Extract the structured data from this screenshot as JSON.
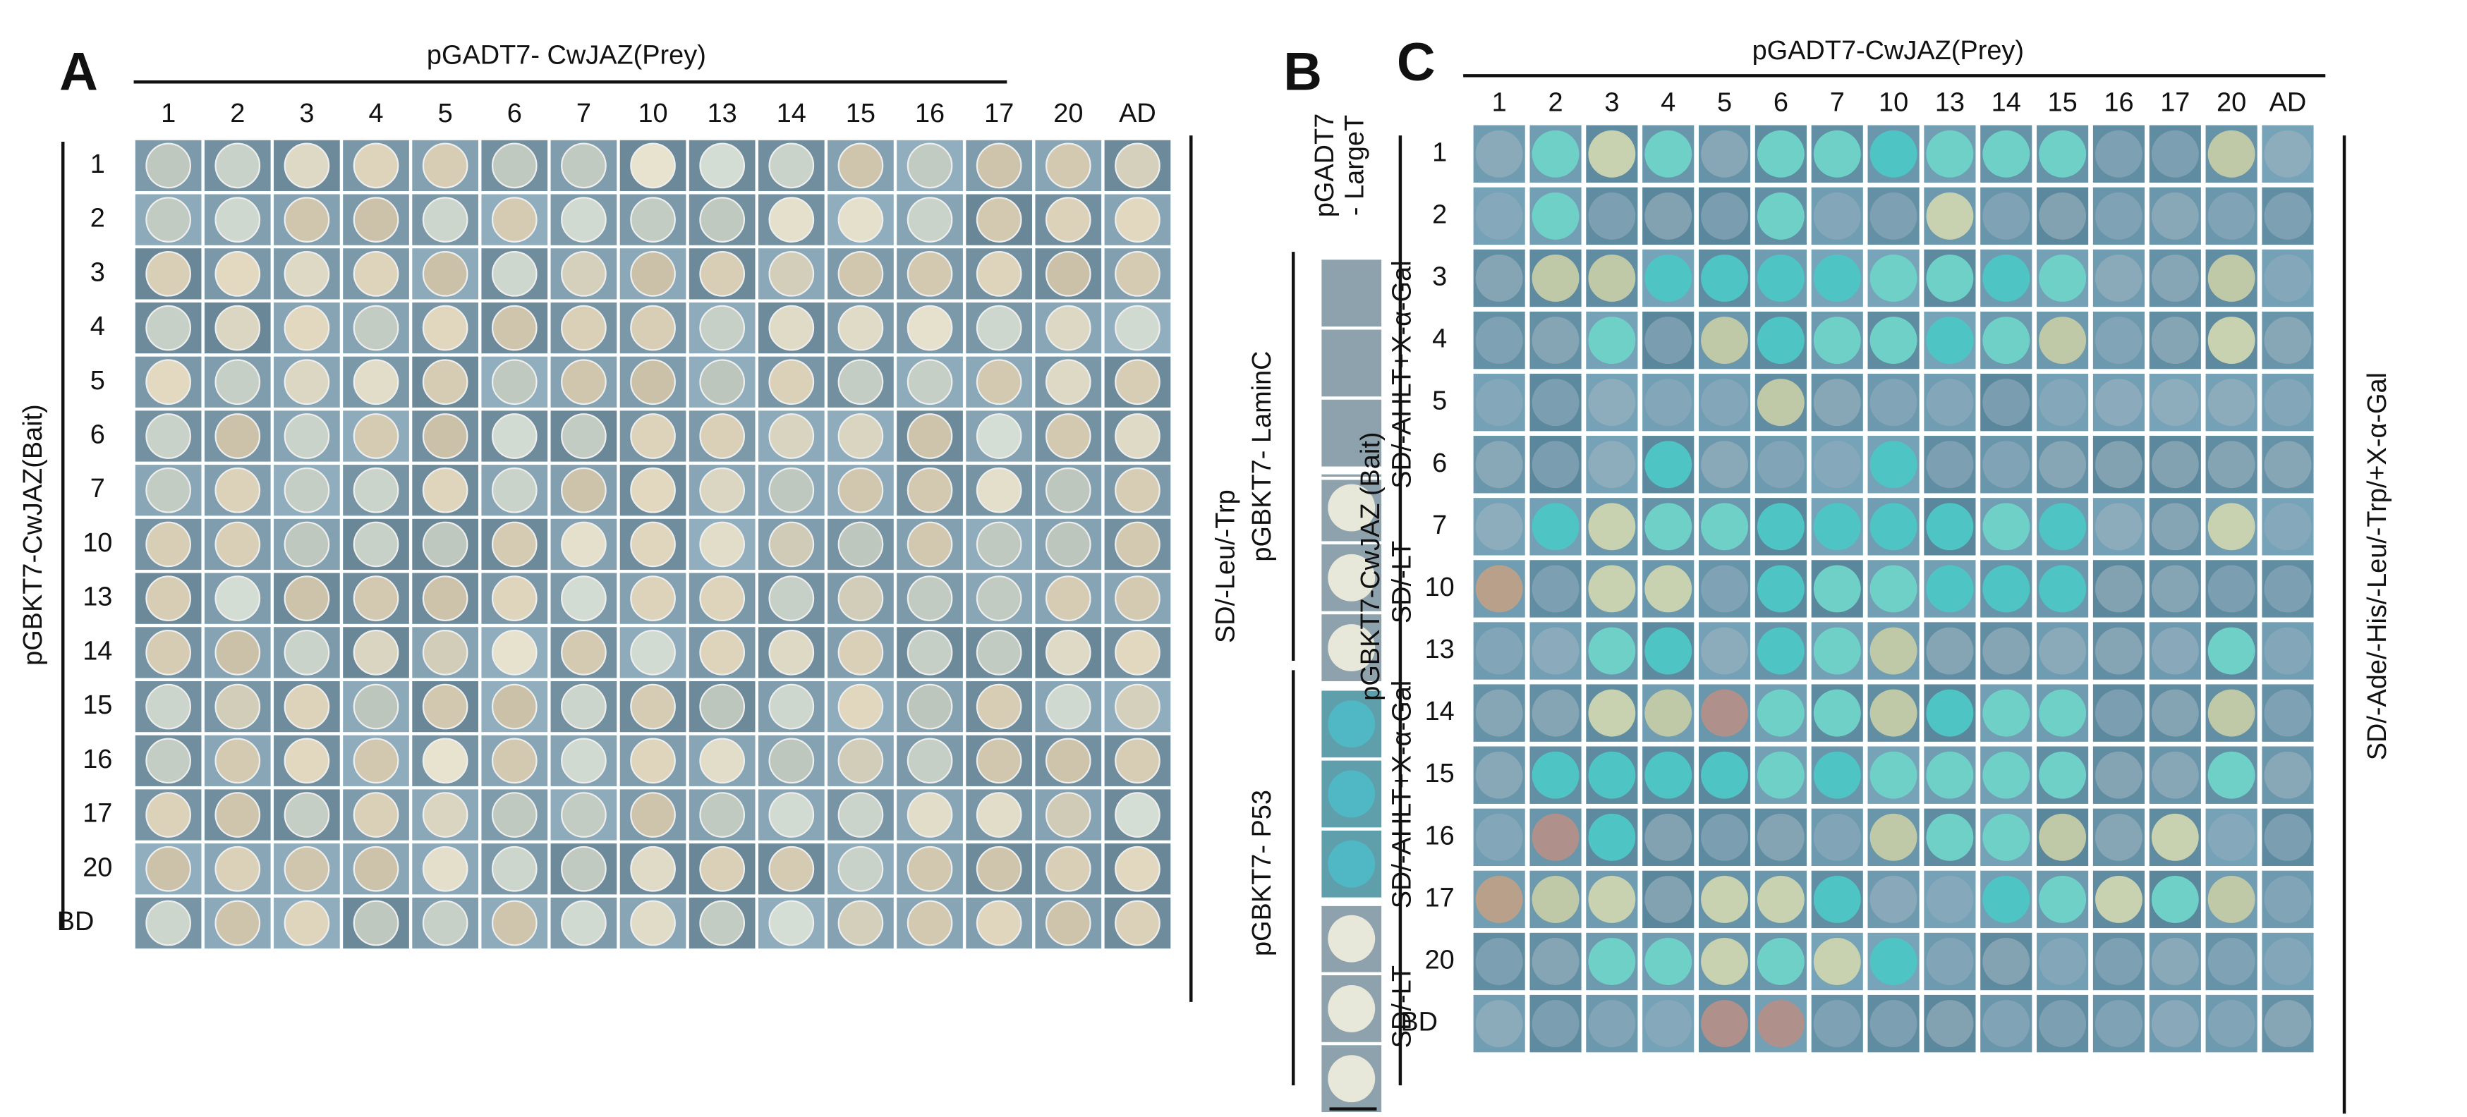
{
  "panel_a": {
    "label": "A",
    "title": "pGADT7- CwJAZ(Prey)",
    "columns": [
      "1",
      "2",
      "3",
      "4",
      "5",
      "6",
      "7",
      "10",
      "13",
      "14",
      "15",
      "16",
      "17",
      "20",
      "AD"
    ],
    "rows": [
      "1",
      "2",
      "3",
      "4",
      "5",
      "6",
      "7",
      "10",
      "13",
      "14",
      "15",
      "16",
      "17",
      "20",
      "BD"
    ],
    "bait_label": "pGBKT7-CwJAZ(Bait)",
    "medium": "SD/-Leu/-Trp"
  },
  "panel_b": {
    "label": "B",
    "prey": [
      "pGADT7",
      "- LargeT"
    ],
    "baits": [
      "pGBKT7- LaminC",
      "pGBKT7- P53"
    ],
    "media": [
      "SD/-AHLT+X-α-Gal",
      "SD/-LT"
    ]
  },
  "panel_c": {
    "label": "C",
    "title": "pGADT7-CwJAZ(Prey)",
    "columns": [
      "1",
      "2",
      "3",
      "4",
      "5",
      "6",
      "7",
      "10",
      "13",
      "14",
      "15",
      "16",
      "17",
      "20",
      "AD"
    ],
    "rows": [
      "1",
      "2",
      "3",
      "4",
      "5",
      "6",
      "7",
      "10",
      "13",
      "14",
      "15",
      "16",
      "17",
      "20",
      "BD"
    ],
    "bait_label": "pGBKT7-CwJAZ (Bait)",
    "medium": "SD/-Ade/-His/-Leu/-Trp/+X-α-Gal"
  }
}
